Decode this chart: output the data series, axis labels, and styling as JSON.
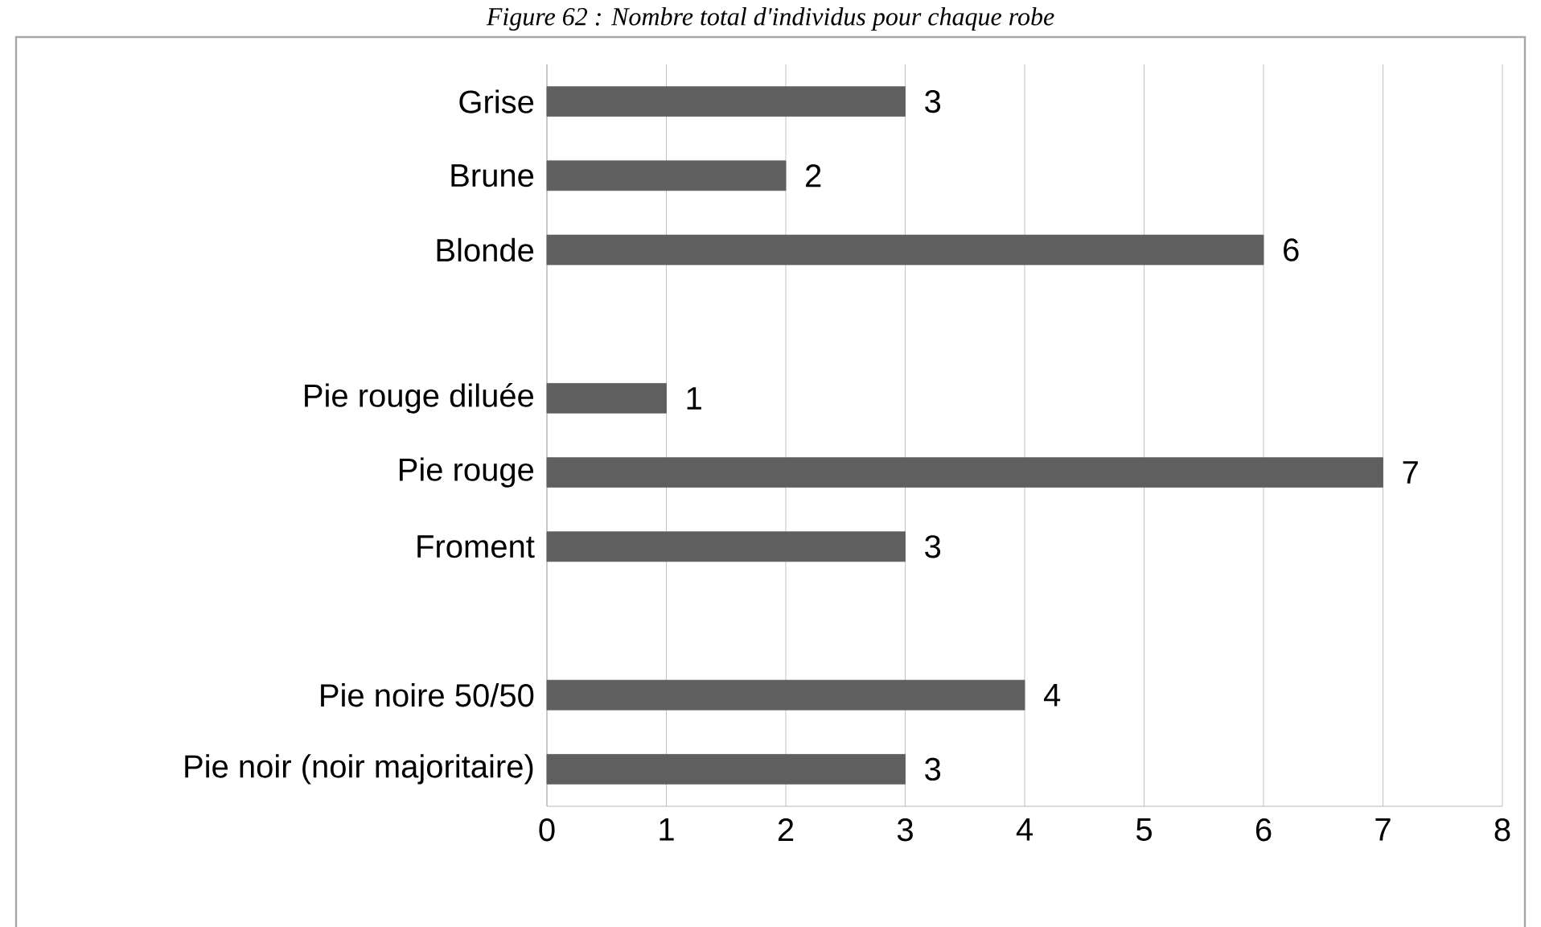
{
  "chart_data": {
    "type": "bar",
    "orientation": "horizontal",
    "title": "*Figure 62 : Nombre total d'individus pour chaque robe*",
    "categories": [
      "Grise",
      "Brune",
      "Blonde",
      null,
      "Pie rouge diluée",
      "Pie rouge",
      "Froment",
      null,
      "Pie noire 50/50",
      "Pie noir (noir majoritaire)"
    ],
    "values": [
      3,
      2,
      6,
      null,
      1,
      7,
      3,
      null,
      4,
      3
    ],
    "color": "#5f5f5f",
    "xlim": [
      0,
      8
    ],
    "xticks": [
      0,
      1,
      2,
      3,
      4,
      5,
      6,
      7,
      8
    ],
    "grid": "x",
    "data_labels": true
  }
}
